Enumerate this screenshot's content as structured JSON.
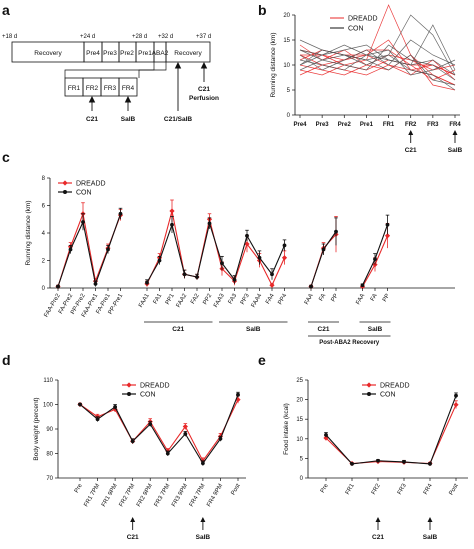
{
  "panel_a": {
    "letter": "a",
    "timeline_ticks": [
      "+18 d",
      "+24 d",
      "+28 d",
      "+32 d",
      "+37 d"
    ],
    "top_boxes": [
      "Recovery",
      "Pre4",
      "Pre3",
      "Pre2",
      "Pre1",
      "ABA2",
      "Recovery"
    ],
    "fr_boxes": [
      "FR1",
      "FR2",
      "FR3",
      "FR4"
    ],
    "arrows": [
      "C21",
      "SalB",
      "C21/SalB",
      "C21\nPerfusion"
    ],
    "arrow_c21": "C21",
    "arrow_salb": "SalB",
    "arrow_c21salb": "C21/SalB",
    "arrow_c21perf_1": "C21",
    "arrow_c21perf_2": "Perfusion"
  },
  "colors": {
    "dreadd": "#e8292a",
    "con": "#111111",
    "individual_con": "#555555"
  },
  "chart_data": [
    {
      "panel": "b",
      "type": "line",
      "ylabel": "Running distance (km)",
      "ylim": [
        0,
        20
      ],
      "yticks": [
        0,
        5,
        10,
        15,
        20
      ],
      "categories": [
        "Pre4",
        "Pre3",
        "Pre2",
        "Pre1",
        "FR1",
        "FR2",
        "FR3",
        "FR4"
      ],
      "legend": [
        "DREADD",
        "CON"
      ],
      "legend_position": "top-right",
      "annotations": [
        {
          "label": "C21",
          "at": "FR2"
        },
        {
          "label": "SalB",
          "at": "FR4"
        }
      ],
      "series": [
        {
          "group": "DREADD",
          "values": [
            12,
            10,
            11,
            12,
            15,
            9,
            10,
            8
          ]
        },
        {
          "group": "DREADD",
          "values": [
            13,
            12,
            10,
            11,
            22,
            12,
            8,
            6
          ]
        },
        {
          "group": "DREADD",
          "values": [
            9,
            8,
            10,
            9,
            11,
            10,
            7,
            9
          ]
        },
        {
          "group": "DREADD",
          "values": [
            11,
            13,
            12,
            12,
            10,
            8,
            11,
            7
          ]
        },
        {
          "group": "DREADD",
          "values": [
            14,
            11,
            13,
            10,
            12,
            11,
            9,
            10
          ]
        },
        {
          "group": "DREADD",
          "values": [
            10,
            9,
            8,
            10,
            9,
            12,
            6,
            5
          ]
        },
        {
          "group": "DREADD",
          "values": [
            12,
            12,
            11,
            13,
            13,
            10,
            10,
            8
          ]
        },
        {
          "group": "DREADD",
          "values": [
            8,
            10,
            9,
            8,
            10,
            9,
            8,
            6
          ]
        },
        {
          "group": "CON",
          "values": [
            13,
            11,
            12,
            10,
            12,
            20,
            16,
            8
          ]
        },
        {
          "group": "CON",
          "values": [
            10,
            12,
            13,
            14,
            11,
            10,
            18,
            9
          ]
        },
        {
          "group": "CON",
          "values": [
            11,
            10,
            9,
            12,
            13,
            8,
            9,
            11
          ]
        },
        {
          "group": "CON",
          "values": [
            15,
            13,
            12,
            11,
            9,
            12,
            7,
            6
          ]
        },
        {
          "group": "CON",
          "values": [
            9,
            11,
            10,
            9,
            14,
            11,
            10,
            7
          ]
        },
        {
          "group": "CON",
          "values": [
            12,
            9,
            11,
            13,
            10,
            15,
            12,
            10
          ]
        },
        {
          "group": "CON",
          "values": [
            10,
            13,
            12,
            11,
            12,
            9,
            8,
            5
          ]
        },
        {
          "group": "CON",
          "values": [
            13,
            12,
            14,
            12,
            11,
            10,
            11,
            8
          ]
        }
      ]
    },
    {
      "panel": "c",
      "type": "line",
      "ylabel": "Running distance (km)",
      "ylim": [
        0,
        8
      ],
      "yticks": [
        0,
        2,
        4,
        6,
        8
      ],
      "legend": [
        "DREADD",
        "CON"
      ],
      "legend_position": "top-left",
      "segments": [
        {
          "categories": [
            "FAA-Pre2",
            "FA-Pre2",
            "PP-Pre2",
            "FAA-Pre1",
            "FA-Pre1",
            "PP-Pre1"
          ],
          "series": [
            {
              "name": "DREADD",
              "values": [
                0.1,
                3.0,
                5.4,
                0.5,
                2.9,
                5.3
              ],
              "err": [
                0.1,
                0.3,
                0.8,
                0.2,
                0.3,
                0.4
              ]
            },
            {
              "name": "CON",
              "values": [
                0.1,
                2.8,
                4.8,
                0.3,
                2.8,
                5.4
              ],
              "err": [
                0.1,
                0.3,
                0.6,
                0.2,
                0.3,
                0.4
              ]
            }
          ]
        },
        {
          "categories": [
            "FAA1",
            "FA1",
            "PP1",
            "FAA2",
            "FA2",
            "PP2",
            "FAA3",
            "FA3",
            "PP3",
            "FAA4",
            "FA4",
            "PP4"
          ],
          "series": [
            {
              "name": "DREADD",
              "values": [
                0.3,
                2.2,
                5.6,
                1.0,
                0.8,
                5.0,
                1.4,
                0.5,
                3.2,
                2.0,
                0.2,
                2.2
              ],
              "err": [
                0.2,
                0.3,
                0.8,
                0.3,
                0.2,
                0.4,
                0.5,
                0.3,
                0.6,
                0.5,
                0.1,
                0.5
              ]
            },
            {
              "name": "CON",
              "values": [
                0.4,
                2.0,
                4.6,
                1.0,
                0.8,
                4.7,
                1.8,
                0.6,
                3.8,
                2.2,
                1.0,
                3.1
              ],
              "err": [
                0.2,
                0.3,
                0.6,
                0.3,
                0.2,
                0.4,
                0.5,
                0.3,
                0.4,
                0.5,
                0.4,
                0.4
              ]
            }
          ]
        },
        {
          "categories": [
            "FAA",
            "FA",
            "PP"
          ],
          "series": [
            {
              "name": "DREADD",
              "values": [
                0.1,
                2.9,
                3.9
              ],
              "err": [
                0.1,
                0.4,
                1.3
              ]
            },
            {
              "name": "CON",
              "values": [
                0.1,
                2.8,
                4.1
              ],
              "err": [
                0.1,
                0.4,
                1.0
              ]
            }
          ]
        },
        {
          "categories": [
            "FAA",
            "FA",
            "PP"
          ],
          "series": [
            {
              "name": "DREADD",
              "values": [
                0.1,
                1.7,
                3.8
              ],
              "err": [
                0.1,
                0.5,
                0.9
              ]
            },
            {
              "name": "CON",
              "values": [
                0.2,
                2.1,
                4.6
              ],
              "err": [
                0.1,
                0.4,
                0.7
              ]
            }
          ]
        }
      ],
      "brackets": [
        "C21",
        "SalB",
        "C21",
        "SalB",
        "Post-ABA2 Recovery"
      ]
    },
    {
      "panel": "d",
      "type": "line",
      "ylabel": "Body weight (percent)",
      "ylim": [
        70,
        110
      ],
      "yticks": [
        70,
        80,
        90,
        100,
        110
      ],
      "categories": [
        "Pre",
        "FR1 7PM",
        "FR1 9PM",
        "FR2 7PM",
        "FR2 9PM",
        "FR3 7PM",
        "FR3 9PM",
        "FR4 7PM",
        "FR4 9PM",
        "Post"
      ],
      "legend": [
        "DREADD",
        "CON"
      ],
      "legend_position": "top",
      "annotations": [
        {
          "label": "C21",
          "at": "FR2 7PM"
        },
        {
          "label": "SalB",
          "at": "FR4 7PM"
        }
      ],
      "series": [
        {
          "name": "DREADD",
          "values": [
            100,
            95,
            98,
            85,
            93,
            81,
            91,
            77,
            87,
            102
          ],
          "err": [
            0.5,
            1,
            1,
            1,
            1.2,
            1,
            1.2,
            1.2,
            1.2,
            1.5
          ]
        },
        {
          "name": "CON",
          "values": [
            100,
            94,
            99,
            85,
            92,
            80,
            88,
            76,
            86,
            104
          ],
          "err": [
            0.5,
            1,
            1,
            1,
            1,
            1,
            1,
            1,
            1,
            1
          ]
        }
      ]
    },
    {
      "panel": "e",
      "type": "line",
      "ylabel": "Food intake (kcal)",
      "ylim": [
        0,
        25
      ],
      "yticks": [
        0,
        5,
        10,
        15,
        20,
        25
      ],
      "categories": [
        "Pre",
        "FR1",
        "FR2",
        "FR3",
        "FR4",
        "Post"
      ],
      "legend": [
        "DREADD",
        "CON"
      ],
      "legend_position": "top",
      "annotations": [
        {
          "label": "C21",
          "at": "FR2"
        },
        {
          "label": "SalB",
          "at": "FR4"
        }
      ],
      "series": [
        {
          "name": "DREADD",
          "values": [
            10.2,
            3.7,
            4.2,
            4.0,
            3.7,
            18.7
          ],
          "err": [
            0.6,
            0.2,
            0.3,
            0.4,
            0.3,
            1.0
          ]
        },
        {
          "name": "CON",
          "values": [
            11.0,
            3.6,
            4.4,
            4.1,
            3.6,
            21.0
          ],
          "err": [
            0.6,
            0.2,
            0.3,
            0.4,
            0.3,
            0.7
          ]
        }
      ]
    }
  ]
}
